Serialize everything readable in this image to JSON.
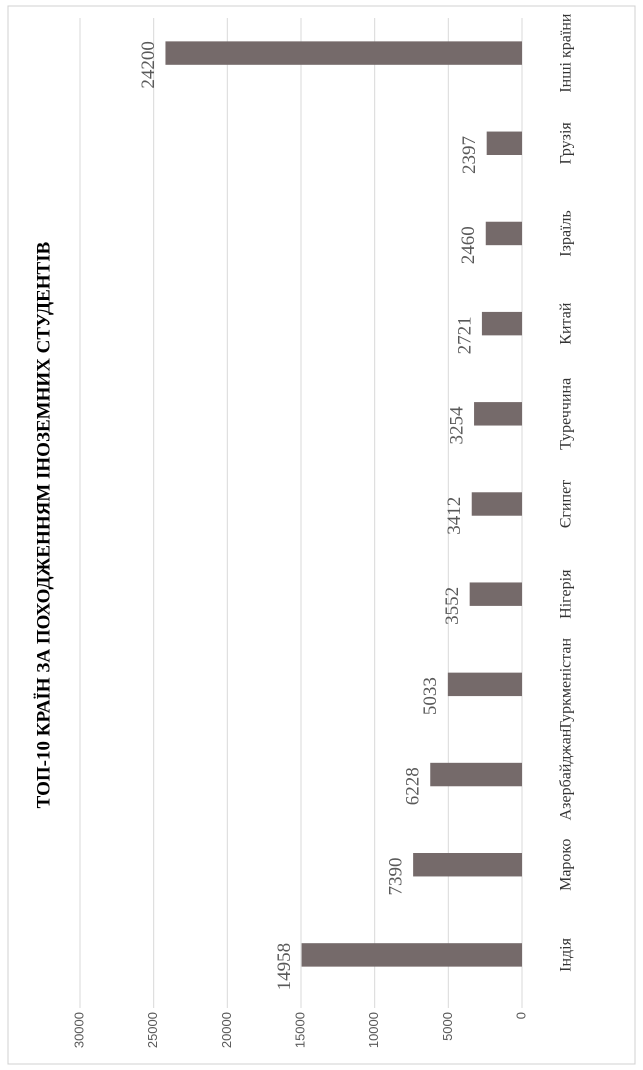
{
  "chart_data": {
    "type": "bar",
    "title": "ТОП-10 КРАЇН ЗА ПОХОДЖЕННЯМ ІНОЗЕМНИХ СТУДЕНТІВ",
    "categories": [
      "Індія",
      "Мароко",
      "Азербайджан",
      "Туркменістан",
      "Нігерія",
      "Єгипет",
      "Туреччина",
      "Китай",
      "Ізраїль",
      "Грузія",
      "Інші країни"
    ],
    "values": [
      14958,
      7390,
      6228,
      5033,
      3552,
      3412,
      3254,
      2721,
      2460,
      2397,
      24200
    ],
    "color": "#756a6a",
    "ylim": [
      0,
      30000
    ],
    "yticks": [
      0,
      5000,
      10000,
      15000,
      20000,
      25000,
      30000
    ],
    "grid": true
  }
}
